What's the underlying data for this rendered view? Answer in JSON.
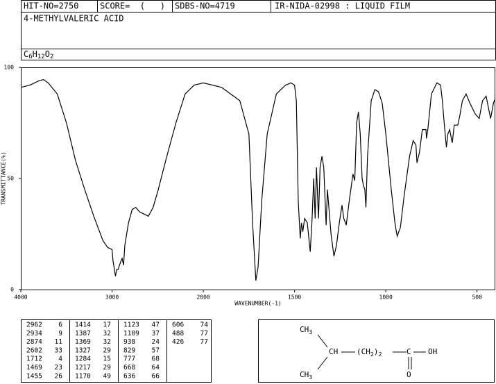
{
  "header": {
    "hit_no": "HIT-NO=2750",
    "score": "SCORE=  (   )",
    "sdbs_no": "SDBS-NO=4719",
    "method": "IR-NIDA-02998 : LIQUID FILM",
    "compound": "4-METHYLVALERIC ACID",
    "formula": [
      {
        "text": "C",
        "sub": "6"
      },
      {
        "text": "H",
        "sub": "12"
      },
      {
        "text": "O",
        "sub": "2"
      }
    ]
  },
  "chart_data": {
    "type": "line",
    "xlabel": "WAVENUMBER(-1)",
    "ylabel": "TRANSMITTANCE(%)",
    "color": "#000000",
    "xlim": [
      4000,
      400
    ],
    "x_scale_change_at": 2000,
    "xticks": [
      4000,
      3000,
      2000,
      1500,
      1000,
      500
    ],
    "ylim": [
      0,
      100
    ],
    "yticks": [
      0,
      50,
      100
    ],
    "x": [
      4000,
      3900,
      3800,
      3750,
      3700,
      3600,
      3500,
      3400,
      3300,
      3200,
      3100,
      3050,
      3000,
      2990,
      2962,
      2950,
      2934,
      2910,
      2890,
      2874,
      2860,
      2820,
      2780,
      2740,
      2700,
      2650,
      2602,
      2550,
      2500,
      2400,
      2300,
      2200,
      2150,
      2100,
      2000,
      1900,
      1800,
      1750,
      1730,
      1712,
      1700,
      1680,
      1650,
      1600,
      1550,
      1520,
      1500,
      1490,
      1480,
      1469,
      1462,
      1455,
      1445,
      1430,
      1414,
      1405,
      1395,
      1387,
      1380,
      1369,
      1360,
      1350,
      1340,
      1327,
      1320,
      1310,
      1300,
      1284,
      1270,
      1255,
      1240,
      1230,
      1217,
      1200,
      1180,
      1170,
      1160,
      1150,
      1140,
      1130,
      1123,
      1115,
      1109,
      1100,
      1080,
      1060,
      1040,
      1020,
      1000,
      970,
      950,
      938,
      920,
      900,
      870,
      850,
      835,
      829,
      815,
      800,
      780,
      777,
      770,
      750,
      720,
      700,
      690,
      680,
      668,
      660,
      650,
      636,
      625,
      606,
      595,
      580,
      560,
      540,
      510,
      488,
      470,
      450,
      426,
      410,
      400
    ],
    "values": [
      91,
      92,
      94,
      94.5,
      93,
      88,
      75,
      58,
      45,
      33,
      22,
      19,
      18,
      13,
      6,
      9,
      9,
      12,
      14,
      11,
      20,
      30,
      36,
      37,
      35,
      34,
      33,
      37,
      44,
      60,
      75,
      88,
      90,
      92,
      93,
      91,
      85,
      70,
      30,
      4,
      10,
      40,
      70,
      88,
      92,
      93,
      92,
      85,
      40,
      23,
      30,
      26,
      32,
      30,
      17,
      30,
      50,
      32,
      55,
      32,
      55,
      60,
      55,
      29,
      45,
      35,
      25,
      15,
      20,
      30,
      38,
      32,
      29,
      40,
      52,
      49,
      75,
      80,
      70,
      50,
      47,
      45,
      37,
      60,
      85,
      90,
      89,
      84,
      70,
      45,
      30,
      24,
      28,
      42,
      60,
      67,
      65,
      57,
      62,
      72,
      72,
      68,
      72,
      88,
      93,
      92,
      85,
      75,
      64,
      70,
      72,
      66,
      74,
      74,
      78,
      85,
      88,
      84,
      79,
      77,
      85,
      87,
      77,
      84,
      86
    ]
  },
  "peak_table": [
    [
      2962,
      6
    ],
    [
      2934,
      9
    ],
    [
      2874,
      11
    ],
    [
      2602,
      33
    ],
    [
      1712,
      4
    ],
    [
      1469,
      23
    ],
    [
      1455,
      26
    ],
    [
      1414,
      17
    ],
    [
      1387,
      32
    ],
    [
      1369,
      32
    ],
    [
      1327,
      29
    ],
    [
      1284,
      15
    ],
    [
      1217,
      29
    ],
    [
      1170,
      49
    ],
    [
      1123,
      47
    ],
    [
      1109,
      37
    ],
    [
      938,
      24
    ],
    [
      829,
      57
    ],
    [
      777,
      68
    ],
    [
      668,
      64
    ],
    [
      636,
      66
    ],
    [
      606,
      74
    ],
    [
      488,
      77
    ],
    [
      426,
      77
    ]
  ],
  "structure": {
    "top": {
      "text": "CH",
      "sub": "3"
    },
    "middle": {
      "text": "CH"
    },
    "chain": {
      "text": "(CH",
      "sub": "2",
      "after": ")",
      "sub2": "2"
    },
    "carbon": {
      "text": "C"
    },
    "hydroxyl": {
      "text": "OH"
    },
    "oxygen": {
      "text": "O"
    },
    "bottom": {
      "text": "CH",
      "sub": "3"
    }
  }
}
